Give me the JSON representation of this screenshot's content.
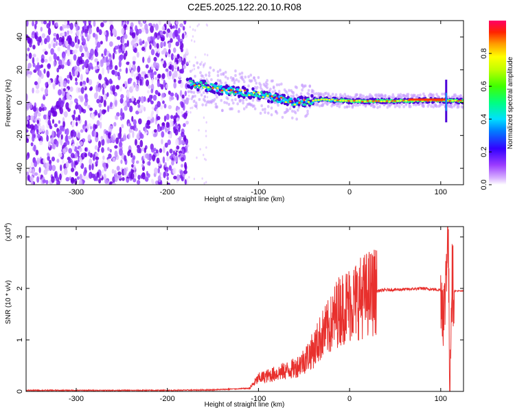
{
  "title": "C2E5.2025.122.20.10.R08",
  "chart_data": [
    {
      "type": "heatmap",
      "xlabel": "Height of straight line (km)",
      "ylabel": "Frequency (Hz)",
      "xlim": [
        -355,
        125
      ],
      "ylim": [
        -50,
        50
      ],
      "xticks": [
        -300,
        -200,
        -100,
        0,
        100
      ],
      "yticks": [
        -40,
        -20,
        0,
        20,
        40
      ],
      "colorbar": {
        "label": "Normalized spectral amplitude",
        "ticks": [
          "0.0",
          "0.2",
          "0.4",
          "0.6",
          "0.8"
        ],
        "tick_values": [
          0.0,
          0.2,
          0.4,
          0.6,
          0.8
        ],
        "range": [
          0,
          1
        ]
      },
      "features": {
        "noise_region_x": [
          -355,
          -178
        ],
        "ridge": [
          {
            "x": -178,
            "f": 12
          },
          {
            "x": -140,
            "f": 8
          },
          {
            "x": -100,
            "f": 5
          },
          {
            "x": -60,
            "f": 0
          },
          {
            "x": -30,
            "f": 2
          },
          {
            "x": 0,
            "f": 1
          },
          {
            "x": 50,
            "f": 1
          },
          {
            "x": 100,
            "f": 1.5
          },
          {
            "x": 125,
            "f": 1
          }
        ],
        "spike_x": 106
      }
    },
    {
      "type": "line",
      "xlabel": "Height of straight line (km)",
      "ylabel": "SNR (10 * v/v)",
      "scale_label": "(x10",
      "scale_exp": "4",
      "xlim": [
        -355,
        125
      ],
      "ylim": [
        0,
        3.2
      ],
      "xticks": [
        -300,
        -200,
        -100,
        0,
        100
      ],
      "yticks": [
        0,
        1,
        2,
        3
      ],
      "color": "#e8302d",
      "series": [
        {
          "x": [
            -355,
            -300,
            -200,
            -150,
            -110,
            -100,
            -90,
            -80,
            -70,
            -60,
            -50,
            -40,
            -30,
            -20,
            -15,
            -10,
            0,
            10,
            20,
            30,
            40,
            60,
            80,
            100,
            104,
            106,
            108,
            110,
            112,
            115,
            125
          ],
          "y": [
            0.02,
            0.02,
            0.02,
            0.03,
            0.06,
            0.25,
            0.3,
            0.35,
            0.4,
            0.45,
            0.6,
            0.8,
            1.1,
            1.3,
            1.5,
            1.6,
            1.7,
            1.8,
            1.9,
            1.95,
            1.97,
            1.98,
            2.0,
            1.97,
            1.5,
            2.5,
            3.2,
            0.1,
            2.2,
            1.95,
            1.95
          ]
        }
      ]
    }
  ]
}
